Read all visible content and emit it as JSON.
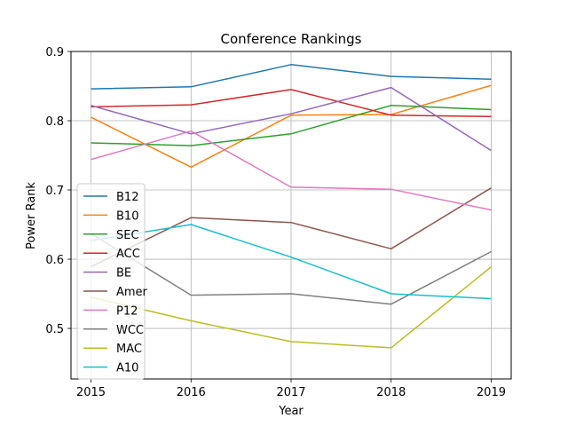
{
  "chart_data": {
    "type": "line",
    "title": "Conference Rankings",
    "xlabel": "Year",
    "ylabel": "Power Rank",
    "x": [
      2015,
      2016,
      2017,
      2018,
      2019
    ],
    "x_ticks": [
      "2015",
      "2016",
      "2017",
      "2018",
      "2019"
    ],
    "xlim": [
      2014.8,
      2019.2
    ],
    "ylim": [
      0.427,
      0.9
    ],
    "y_ticks": [
      "0.5",
      "0.6",
      "0.7",
      "0.8",
      "0.9"
    ],
    "y_tick_values": [
      0.5,
      0.6,
      0.7,
      0.8,
      0.9
    ],
    "grid": true,
    "legend_position": "center-left",
    "series": [
      {
        "name": "B12",
        "color": "#1f77b4",
        "values": [
          0.846,
          0.849,
          0.881,
          0.864,
          0.86
        ]
      },
      {
        "name": "B10",
        "color": "#ff7f0e",
        "values": [
          0.805,
          0.733,
          0.808,
          0.809,
          0.851
        ]
      },
      {
        "name": "SEC",
        "color": "#2ca02c",
        "values": [
          0.768,
          0.764,
          0.781,
          0.822,
          0.816
        ]
      },
      {
        "name": "ACC",
        "color": "#d62728",
        "values": [
          0.82,
          0.823,
          0.845,
          0.808,
          0.806
        ]
      },
      {
        "name": "BE",
        "color": "#9467bd",
        "values": [
          0.822,
          0.781,
          0.81,
          0.848,
          0.757
        ]
      },
      {
        "name": "Amer",
        "color": "#8c564b",
        "values": [
          0.589,
          0.66,
          0.653,
          0.615,
          0.703
        ]
      },
      {
        "name": "P12",
        "color": "#e377c2",
        "values": [
          0.744,
          0.785,
          0.704,
          0.701,
          0.671
        ]
      },
      {
        "name": "WCC",
        "color": "#7f7f7f",
        "values": [
          0.637,
          0.548,
          0.55,
          0.535,
          0.611
        ]
      },
      {
        "name": "MAC",
        "color": "#bcbd22",
        "values": [
          0.545,
          0.511,
          0.481,
          0.472,
          0.589
        ]
      },
      {
        "name": "A10",
        "color": "#17becf",
        "values": [
          0.627,
          0.65,
          0.603,
          0.55,
          0.543
        ]
      }
    ]
  }
}
